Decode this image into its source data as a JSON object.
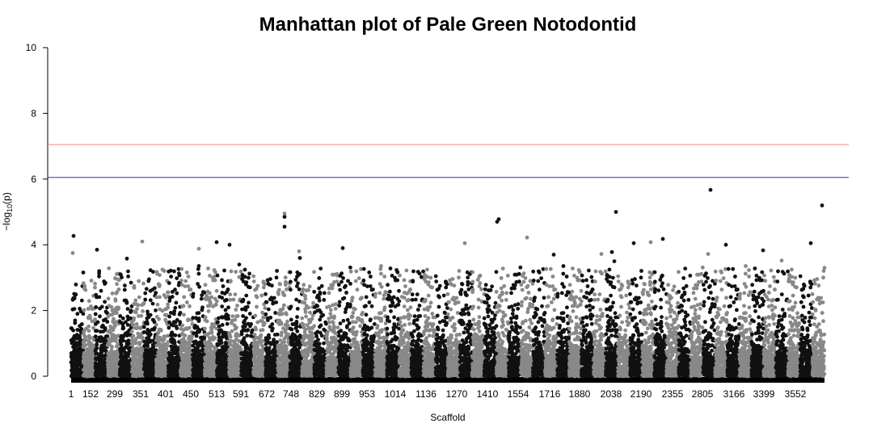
{
  "chart_data": {
    "type": "scatter",
    "title": "Manhattan plot of Pale Green Notodontid",
    "xlabel": "Scaffold",
    "ylabel": "−log10(p)",
    "ylim": [
      0,
      10
    ],
    "yticks": [
      0,
      2,
      4,
      6,
      8,
      10
    ],
    "xtick_labels": [
      "1",
      "152",
      "299",
      "351",
      "401",
      "450",
      "513",
      "591",
      "672",
      "748",
      "829",
      "899",
      "953",
      "1014",
      "1136",
      "1270",
      "1410",
      "1554",
      "1716",
      "1880",
      "2038",
      "2190",
      "2355",
      "2805",
      "3166",
      "3399",
      "3552"
    ],
    "threshold_lines": [
      {
        "value": 7.05,
        "color": "#ff7f7f"
      },
      {
        "value": 6.05,
        "color": "#3333aa"
      }
    ],
    "colors": {
      "dark": "#111111",
      "light": "#888888",
      "axis": "#000000",
      "background": "#ffffff"
    },
    "grid": false,
    "legend": "none",
    "series": [
      {
        "values": [
          4.27,
          3.75,
          2.05,
          3.85,
          4.1,
          3.58,
          3.4,
          3.88,
          4.08,
          4.0,
          4.95,
          4.85,
          4.55,
          3.8,
          3.9,
          3.6,
          4.05,
          4.78,
          4.7,
          4.22,
          3.7,
          3.78,
          3.72,
          5.0,
          4.05,
          4.08,
          4.18,
          5.67,
          3.72,
          4.0,
          3.83,
          3.52,
          4.05,
          5.2,
          3.3,
          3.5
        ]
      }
    ]
  }
}
